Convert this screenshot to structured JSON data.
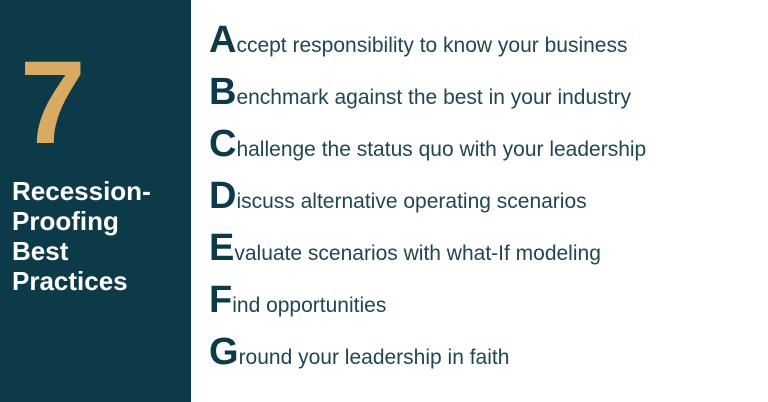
{
  "panel": {
    "number": "7",
    "title_lines": [
      "Recession-",
      "Proofing",
      "Best",
      "Practices"
    ]
  },
  "items": [
    {
      "letter": "A",
      "text": "ccept responsibility to know your business"
    },
    {
      "letter": "B",
      "text": "enchmark against the best in your industry"
    },
    {
      "letter": "C",
      "text": "hallenge the status quo with your leadership"
    },
    {
      "letter": "D",
      "text": "iscuss alternative operating scenarios"
    },
    {
      "letter": "E",
      "text": "valuate scenarios with what-If modeling"
    },
    {
      "letter": "F",
      "text": "ind opportunities"
    },
    {
      "letter": "G",
      "text": "round your leadership in faith"
    }
  ],
  "colors": {
    "panel_bg": "#0d3a48",
    "number": "#d8aa64",
    "panel_text": "#ffffff",
    "letter": "#0d3a48",
    "item_text": "#1f4652"
  }
}
